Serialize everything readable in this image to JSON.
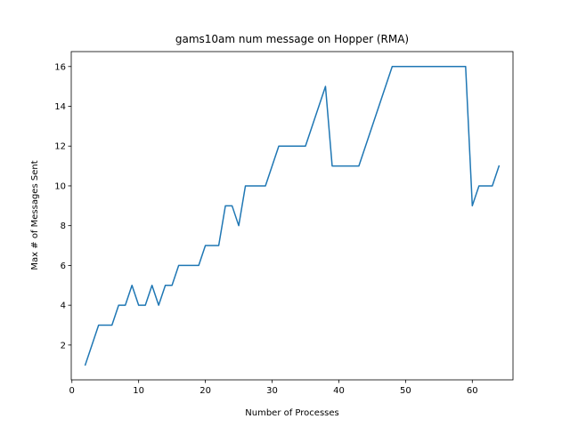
{
  "chart_data": {
    "type": "line",
    "title": "gams10am num message on Hopper (RMA)",
    "xlabel": "Number of Processes",
    "ylabel": "Max # of Messages Sent",
    "xlim": [
      -0.1,
      66.1
    ],
    "ylim": [
      0.25,
      16.75
    ],
    "xticks": [
      0,
      10,
      20,
      30,
      40,
      50,
      60
    ],
    "yticks": [
      2,
      4,
      6,
      8,
      10,
      12,
      14,
      16
    ],
    "grid": false,
    "line_color": "#1f77b4",
    "series": [
      {
        "x": [
          2,
          3,
          4,
          5,
          6,
          7,
          8,
          9,
          10,
          11,
          12,
          13,
          14,
          15,
          16,
          17,
          18,
          19,
          20,
          21,
          22,
          23,
          24,
          25,
          26,
          27,
          28,
          29,
          30,
          31,
          32,
          33,
          34,
          35,
          36,
          37,
          38,
          39,
          40,
          41,
          42,
          43,
          44,
          45,
          46,
          47,
          48,
          49,
          50,
          51,
          52,
          53,
          54,
          55,
          56,
          57,
          58,
          59,
          60,
          61,
          62,
          63,
          64
        ],
        "values": [
          1,
          2,
          3,
          3,
          3,
          4,
          4,
          5,
          4,
          4,
          5,
          4,
          5,
          5,
          6,
          6,
          6,
          6,
          7,
          7,
          7,
          9,
          9,
          8,
          10,
          10,
          10,
          10,
          11,
          12,
          12,
          12,
          12,
          12,
          13,
          14,
          15,
          11,
          11,
          11,
          11,
          11,
          12,
          13,
          14,
          15,
          16,
          16,
          16,
          16,
          16,
          16,
          16,
          16,
          16,
          16,
          16,
          16,
          9,
          10,
          10,
          10,
          11
        ]
      }
    ]
  }
}
